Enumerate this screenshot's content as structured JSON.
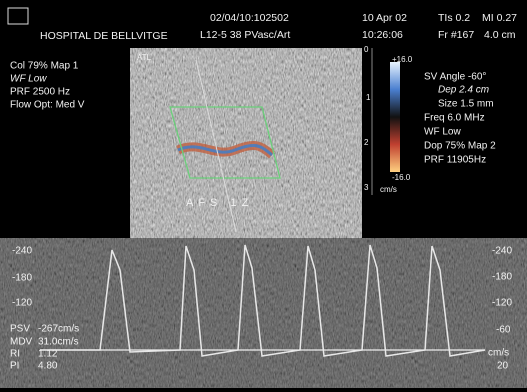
{
  "header": {
    "hospital": "HOSPITAL DE BELLVITGE",
    "study_id": "02/04/10:102502",
    "probe": "L12-5 38 PVasc/Art",
    "date": "10 Apr 02",
    "time": "10:26:06",
    "tis": "TIs 0.2",
    "mi": "MI 0.27",
    "frame": "Fr #167",
    "depth": "4.0 cm"
  },
  "left_panel": {
    "lines": [
      "Col 79%  Map 1",
      "WF Low",
      "PRF 2500  Hz",
      "Flow Opt: Med V"
    ]
  },
  "image_label": "ATL",
  "color_bar": {
    "top": "+16.0",
    "bottom": "-16.0",
    "unit": "cm/s"
  },
  "depth_scale": [
    "0",
    "1",
    "2",
    "3"
  ],
  "right_panel": {
    "lines": [
      "SV Angle -60°",
      "Dep 2.4  cm",
      "Size 1.5  mm",
      "Freq 6.0  MHz",
      "WF Low",
      "Dop 75%  Map 2",
      "PRF 11905Hz"
    ]
  },
  "focus_label": "AFS 1Z",
  "doppler": {
    "left_scale": [
      "-240",
      "-180",
      "-120"
    ],
    "right_scale": [
      "-240",
      "-180",
      "-120",
      "-60",
      "cm/s",
      "20"
    ]
  },
  "measurements": [
    {
      "label": "PSV",
      "value": "-267cm/s"
    },
    {
      "label": "MDV",
      "value": "31.0cm/s"
    },
    {
      "label": "RI",
      "value": "1.12"
    },
    {
      "label": "PI",
      "value": "4.80"
    }
  ]
}
